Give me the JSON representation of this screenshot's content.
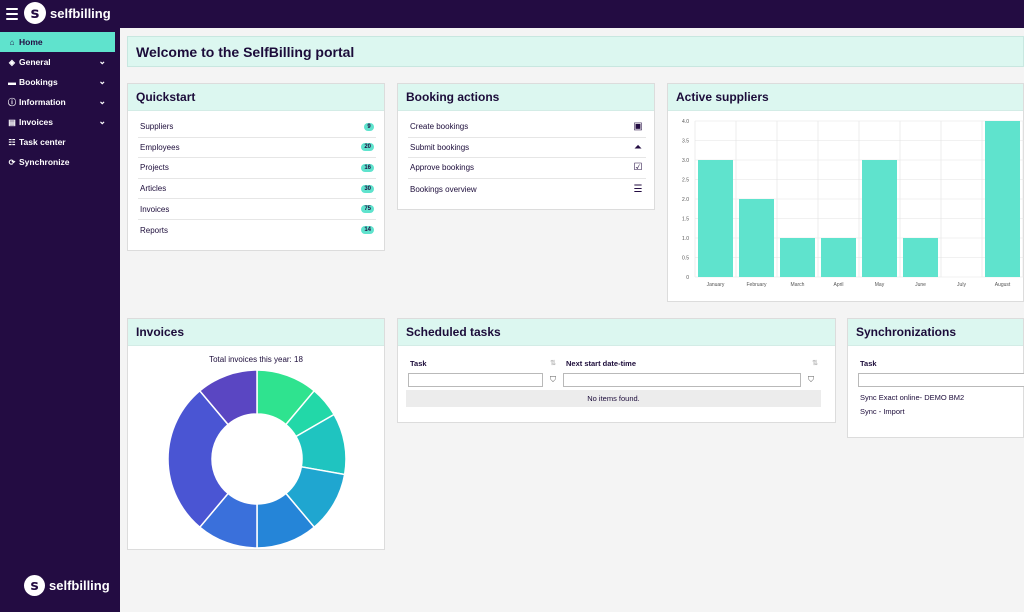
{
  "app": {
    "brand": "selfbilling",
    "logo_letter": "s"
  },
  "sidebar": {
    "items": [
      {
        "label": "Home",
        "icon": "home-icon",
        "active": true,
        "has_chevron": false
      },
      {
        "label": "General",
        "icon": "layers-icon",
        "active": false,
        "has_chevron": true
      },
      {
        "label": "Bookings",
        "icon": "book-icon",
        "active": false,
        "has_chevron": true
      },
      {
        "label": "Information",
        "icon": "info-icon",
        "active": false,
        "has_chevron": true
      },
      {
        "label": "Invoices",
        "icon": "invoice-icon",
        "active": false,
        "has_chevron": true
      },
      {
        "label": "Task center",
        "icon": "task-list-icon",
        "active": false,
        "has_chevron": false
      },
      {
        "label": "Synchronize",
        "icon": "sync-icon",
        "active": false,
        "has_chevron": false
      }
    ]
  },
  "welcome": {
    "title": "Welcome to the SelfBilling portal"
  },
  "quickstart": {
    "title": "Quickstart",
    "items": [
      {
        "label": "Suppliers",
        "count": "9"
      },
      {
        "label": "Employees",
        "count": "20"
      },
      {
        "label": "Projects",
        "count": "16"
      },
      {
        "label": "Articles",
        "count": "30"
      },
      {
        "label": "Invoices",
        "count": "75"
      },
      {
        "label": "Reports",
        "count": "14"
      }
    ]
  },
  "booking_actions": {
    "title": "Booking actions",
    "items": [
      {
        "label": "Create bookings",
        "icon": "calendar-plus-icon",
        "glyph": "▣"
      },
      {
        "label": "Submit bookings",
        "icon": "upload-box-icon",
        "glyph": "⏶"
      },
      {
        "label": "Approve bookings",
        "icon": "check-box-icon",
        "glyph": "☑"
      },
      {
        "label": "Bookings overview",
        "icon": "checklist-icon",
        "glyph": "☰"
      }
    ]
  },
  "active_suppliers": {
    "title": "Active suppliers",
    "color": "#5fe3cd"
  },
  "chart_data": {
    "type": "bar",
    "title": "Active suppliers",
    "categories": [
      "January",
      "February",
      "March",
      "April",
      "May",
      "June",
      "July",
      "August"
    ],
    "values": [
      3,
      2,
      1,
      1,
      3,
      1,
      0,
      4
    ],
    "ylim": [
      0,
      4
    ],
    "yticks": [
      "4.0",
      "3.5",
      "3.0",
      "2.5",
      "2.0",
      "1.5",
      "1.0",
      "0.5",
      "0"
    ],
    "grid": true,
    "color": "#5fe3cd"
  },
  "invoices": {
    "title": "Invoices",
    "total_label": "Total invoices this year: 18",
    "donut_slices": [
      {
        "value": 2,
        "color": "#2fe38f"
      },
      {
        "value": 1,
        "color": "#22d8a8"
      },
      {
        "value": 2,
        "color": "#1fc4c0"
      },
      {
        "value": 2,
        "color": "#1fa6d0"
      },
      {
        "value": 2,
        "color": "#2585d8"
      },
      {
        "value": 2,
        "color": "#3a70db"
      },
      {
        "value": 5,
        "color": "#4a55d3"
      },
      {
        "value": 2,
        "color": "#5a46c2"
      }
    ]
  },
  "scheduled_tasks": {
    "title": "Scheduled tasks",
    "col_task": "Task",
    "col_next": "Next start date-time",
    "empty": "No items found."
  },
  "synchronizations": {
    "title": "Synchronizations",
    "col_task": "Task",
    "rows": [
      "Sync Exact online- DEMO BM2",
      "Sync - Import"
    ]
  }
}
